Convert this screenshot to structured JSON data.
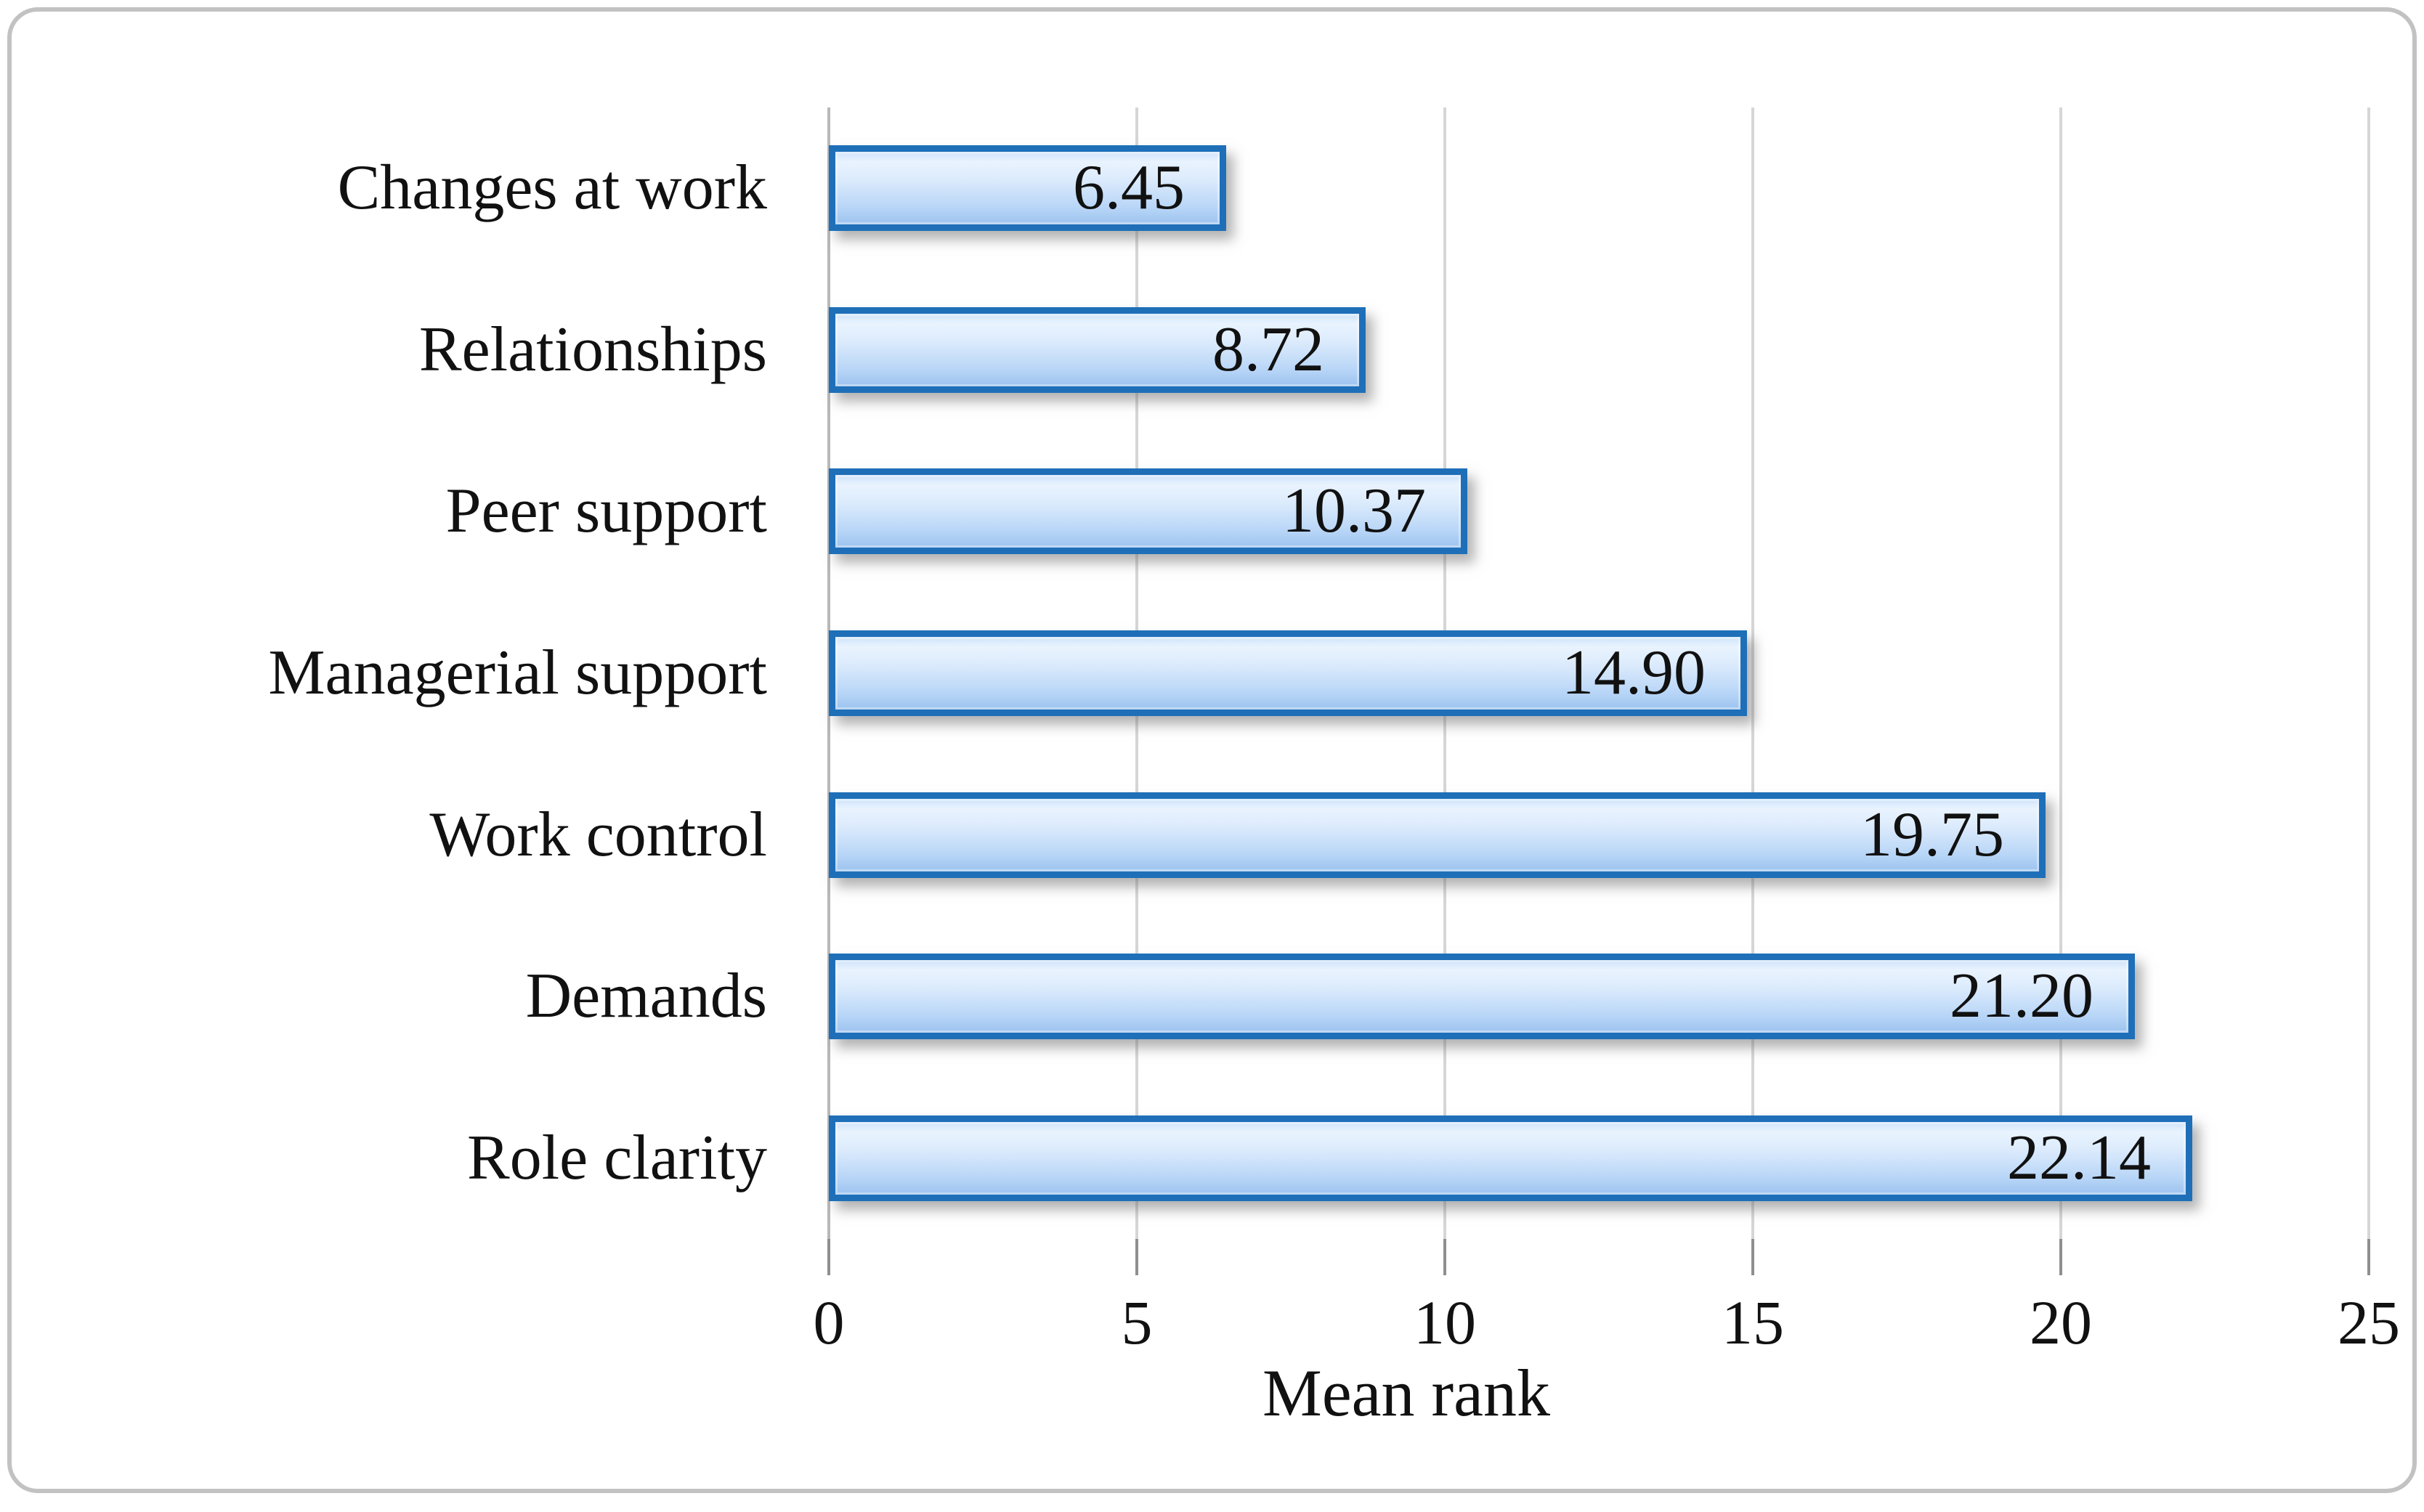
{
  "figure": {
    "background": "#ffffff",
    "frame_border_color": "#c2c2c2"
  },
  "chart_data": {
    "type": "bar",
    "orientation": "horizontal",
    "title": "",
    "xlabel": "Mean rank",
    "ylabel": "",
    "categories": [
      "Changes at work",
      "Relationships",
      "Peer support",
      "Managerial support",
      "Work control",
      "Demands",
      "Role clarity"
    ],
    "values": [
      6.45,
      8.72,
      10.37,
      14.9,
      19.75,
      21.2,
      22.14
    ],
    "value_labels": [
      "6.45",
      "8.72",
      "10.37",
      "14.90",
      "19.75",
      "21.20",
      "22.14"
    ],
    "x_ticks": [
      0,
      5,
      10,
      15,
      20,
      25
    ],
    "x_tick_labels": [
      "0",
      "5",
      "10",
      "15",
      "20",
      "25"
    ],
    "xlim": [
      0,
      25
    ],
    "grid": true,
    "legend": false,
    "colors": {
      "bar_border": "#1e6fb8",
      "bar_fill_top": "#cfe3fa",
      "bar_fill_highlight": "#e9f3fe",
      "bar_fill_mid": "#dcebfc",
      "bar_fill_low": "#b9d6f7",
      "bar_fill_bottom": "#9cc3ef",
      "gridline": "#d6d6d6",
      "tick": "#8f8f8f",
      "text": "#111111"
    }
  }
}
